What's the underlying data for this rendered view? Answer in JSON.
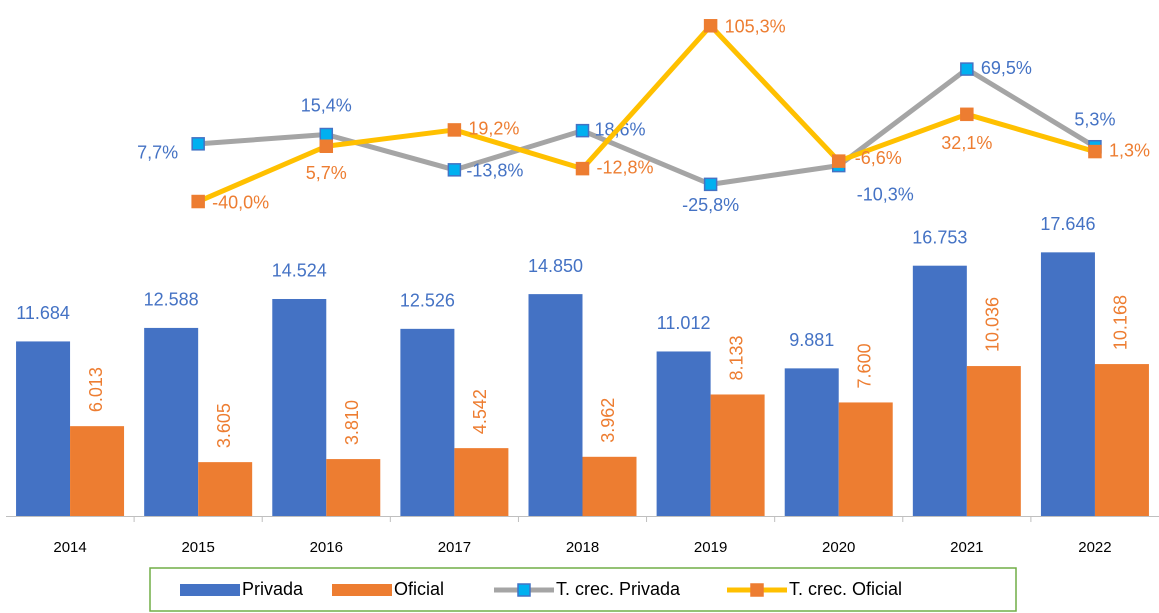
{
  "chart_data": {
    "type": "bar-line",
    "categories": [
      "2014",
      "2015",
      "2016",
      "2017",
      "2018",
      "2019",
      "2020",
      "2021",
      "2022"
    ],
    "ylim": [
      0,
      34000
    ],
    "y2lim": [
      -300,
      120
    ],
    "legend": "bottom",
    "series": [
      {
        "name": "Privada",
        "kind": "bar",
        "color": "#4472c4",
        "values": [
          11684,
          12588,
          14524,
          12526,
          14850,
          11012,
          9881,
          16753,
          17646
        ],
        "value_labels": [
          "11.684",
          "12.588",
          "14.524",
          "12.526",
          "14.850",
          "11.012",
          "9.881",
          "16.753",
          "17.646"
        ]
      },
      {
        "name": "Oficial",
        "kind": "bar",
        "color": "#ed7d31",
        "values": [
          6013,
          3605,
          3810,
          4542,
          3962,
          8133,
          7600,
          10036,
          10168
        ],
        "value_labels": [
          "6.013",
          "3.605",
          "3.810",
          "4.542",
          "3.962",
          "8.133",
          "7.600",
          "10.036",
          "10.168"
        ]
      },
      {
        "name": "T. crec. Privada",
        "kind": "line",
        "axis": "y2",
        "color": "#a5a5a5",
        "marker_color": "#00b0f0",
        "label_color": "#4472c4",
        "values": [
          null,
          7.7,
          15.4,
          -13.8,
          18.6,
          -25.8,
          -10.3,
          69.5,
          5.3
        ],
        "value_labels": [
          null,
          "7,7%",
          "15,4%",
          "-13,8%",
          "18,6%",
          "-25,8%",
          "-10,3%",
          "69,5%",
          "5,3%"
        ]
      },
      {
        "name": "T. crec. Oficial",
        "kind": "line",
        "axis": "y2",
        "color": "#ffc000",
        "marker_color": "#ed7d31",
        "label_color": "#ed7d31",
        "values": [
          null,
          -40.0,
          5.7,
          19.2,
          -12.8,
          105.3,
          -6.6,
          32.1,
          1.3
        ],
        "value_labels": [
          null,
          "-40,0%",
          "5,7%",
          "19,2%",
          "-12,8%",
          "105,3%",
          "-6,6%",
          "32,1%",
          "1,3%"
        ]
      }
    ]
  }
}
